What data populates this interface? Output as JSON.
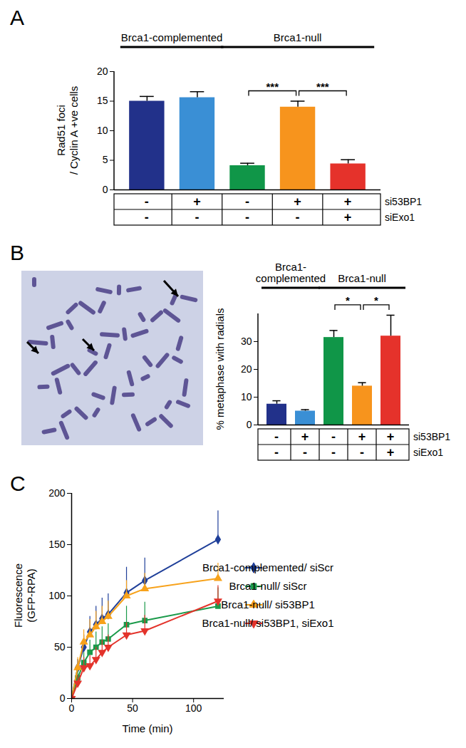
{
  "chart_data": [
    {
      "type": "bar",
      "title": "A",
      "categories": [
        null,
        null,
        null,
        null,
        null
      ],
      "values": [
        15,
        15.6,
        4.1,
        14,
        4.4
      ],
      "errors": [
        0.8,
        1.0,
        0.4,
        1.0,
        0.7
      ],
      "colors": [
        "#22318a",
        "#3a8fd5",
        "#109648",
        "#f7941d",
        "#e5322b"
      ],
      "y_label": "Rad51 foci\n/ Cyclin A +ve cells",
      "ylim": [
        0,
        20
      ],
      "yticks": [
        0,
        5,
        10,
        15,
        20
      ],
      "tick_labels": "y",
      "groups": [
        {
          "label": "Brca1-complemented",
          "count": 2
        },
        {
          "label": "Brca1-null",
          "count": 3
        }
      ],
      "conditions": [
        {
          "name": "si53BP1",
          "values": [
            "-",
            "+",
            "-",
            "+",
            "+"
          ]
        },
        {
          "name": "siExo1",
          "values": [
            "-",
            "-",
            "-",
            "-",
            "+"
          ]
        }
      ],
      "significance": [
        {
          "from": 2,
          "to": 3,
          "label": "***"
        },
        {
          "from": 3,
          "to": 4,
          "label": "***"
        }
      ]
    },
    {
      "type": "bar",
      "title": "B",
      "categories": [
        null,
        null,
        null,
        null,
        null
      ],
      "values": [
        7.5,
        5,
        31.5,
        14,
        32
      ],
      "errors": [
        1.2,
        0.5,
        2.5,
        1.2,
        7.5
      ],
      "colors": [
        "#22318a",
        "#3a8fd5",
        "#109648",
        "#f7941d",
        "#e5322b"
      ],
      "y_label": "% metaphase with radials",
      "ylim": [
        0,
        40
      ],
      "yticks": [
        0,
        10,
        20,
        30
      ],
      "tick_labels": "y",
      "groups": [
        {
          "label": "Brca1-complemented",
          "count": 2
        },
        {
          "label": "Brca1-null",
          "count": 3
        }
      ],
      "conditions": [
        {
          "name": "si53BP1",
          "values": [
            "-",
            "+",
            "-",
            "+",
            "+"
          ]
        },
        {
          "name": "siExo1",
          "values": [
            "-",
            "-",
            "-",
            "-",
            "+"
          ]
        }
      ],
      "significance": [
        {
          "from": 2,
          "to": 3,
          "label": "*"
        },
        {
          "from": 3,
          "to": 4,
          "label": "*"
        }
      ]
    },
    {
      "type": "line",
      "title": "C",
      "x": [
        0,
        5,
        10,
        15,
        20,
        25,
        30,
        45,
        60,
        120
      ],
      "x_label": "Time (min)",
      "y_label": "Fluorescence\n(GFP-RPA)",
      "xlim": [
        0,
        125
      ],
      "xticks": [
        0,
        50,
        100
      ],
      "ylim": [
        0,
        200
      ],
      "yticks": [
        0,
        50,
        100,
        150,
        200
      ],
      "legend": "right",
      "series": [
        {
          "name": "Brca1-complemented/ siScr",
          "color": "#1f3f99",
          "marker": "diamond",
          "values": [
            0,
            30,
            50,
            65,
            72,
            78,
            82,
            103,
            115,
            155
          ],
          "errors": [
            0,
            8,
            12,
            15,
            18,
            20,
            20,
            25,
            22,
            28
          ]
        },
        {
          "name": "Brca1-null/ siScr",
          "color": "#1a9a4a",
          "marker": "square",
          "values": [
            0,
            20,
            35,
            45,
            50,
            55,
            58,
            72,
            76,
            90
          ],
          "errors": [
            0,
            8,
            10,
            12,
            15,
            15,
            15,
            18,
            18,
            18
          ]
        },
        {
          "name": "Brca1-null/ si53BP1",
          "color": "#f7a21b",
          "marker": "triangle",
          "values": [
            0,
            30,
            55,
            62,
            70,
            75,
            80,
            100,
            107,
            117
          ],
          "errors": [
            0,
            10,
            12,
            15,
            15,
            15,
            15,
            15,
            15,
            15
          ]
        },
        {
          "name": "Brca1-null/ si53BP1, siExo1",
          "color": "#e3332b",
          "marker": "triangle-down",
          "values": [
            0,
            15,
            30,
            32,
            38,
            45,
            50,
            62,
            66,
            95
          ],
          "errors": [
            0,
            8,
            10,
            10,
            12,
            12,
            12,
            12,
            15,
            15
          ]
        }
      ]
    }
  ]
}
